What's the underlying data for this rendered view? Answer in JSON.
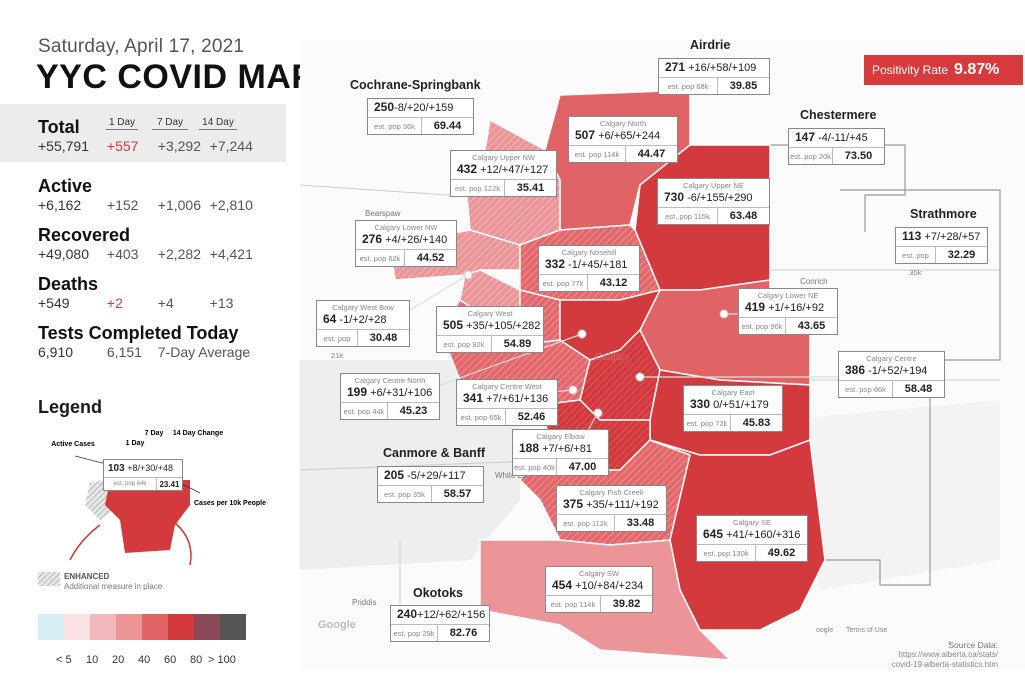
{
  "header": {
    "date": "Saturday, April 17, 2021",
    "title": "YYC COVID MAP"
  },
  "columns": {
    "d1": "1 Day",
    "d7": "7 Day",
    "d14": "14 Day"
  },
  "stats": {
    "total": {
      "label": "Total",
      "value": "+55,791",
      "d1": "+557",
      "d7": "+3,292",
      "d14": "+7,244"
    },
    "active": {
      "label": "Active",
      "value": "+6,162",
      "d1": "+152",
      "d7": "+1,006",
      "d14": "+2,810"
    },
    "recovered": {
      "label": "Recovered",
      "value": "+49,080",
      "d1": "+403",
      "d7": "+2,282",
      "d14": "+4,421"
    },
    "deaths": {
      "label": "Deaths",
      "value": "+549",
      "d1": "+2",
      "d7": "+4",
      "d14": "+13"
    },
    "tests": {
      "label": "Tests Completed Today",
      "value": "6,910",
      "avg": "6,151",
      "avg_label": "7-Day Average"
    }
  },
  "legend": {
    "title": "Legend",
    "active_cases": "Active Cases",
    "one_day": "1 Day",
    "seven_day": "7 Day",
    "fourteen_day": "14 Day Change",
    "cases_per": "Cases per 10k People",
    "sample_active": "103",
    "sample_changes": "+8/+30/+48",
    "sample_pop": "est. pop 44k",
    "sample_rate": "23.41",
    "enhanced": "ENHANCED",
    "enhanced_desc": "Additional measure in place",
    "scale_labels": [
      "< 5",
      "10",
      "20",
      "40",
      "60",
      "80",
      "> 100"
    ],
    "scale_colors": [
      "#d6edf5",
      "#fbe3e5",
      "#f3b9bc",
      "#ec9598",
      "#e06366",
      "#d23a3e",
      "#8a4a58",
      "#555555"
    ]
  },
  "positivity": {
    "label": "Positivity Rate",
    "value": "9.87%"
  },
  "source": {
    "title": "Source Data:",
    "line1": "https://www.alberta.ca/stats/",
    "line2": "covid-19-alberta-statistics.htm"
  },
  "basemap": {
    "calgary": "Calgary",
    "white_elk": "White Elk",
    "priddis": "Priddis",
    "conrich": "Conrich",
    "bearspaw": "Bearspaw",
    "google": "Google",
    "terms": "Terms of Use",
    "keyboard": "oogle"
  },
  "regions": {
    "airdrie": {
      "title": "Airdrie",
      "active": "271",
      "changes": "+16/+58/+109",
      "pop": "est. pop 68k",
      "rate": "39.85"
    },
    "cochrane": {
      "title": "Cochrane-Springbank",
      "active": "250",
      "changes": "-8/+20/+159",
      "pop": "est. pop 36k",
      "rate": "69.44"
    },
    "chestermere": {
      "title": "Chestermere",
      "active": "147",
      "changes": "-4/-11/+45",
      "pop": "est. pop 20k",
      "rate": "73.50"
    },
    "strathmore": {
      "title": "Strathmore",
      "active": "113",
      "changes": "+7/+28/+57",
      "pop": "est. pop 35k",
      "rate": "32.29"
    },
    "north": {
      "name": "Calgary North",
      "active": "507",
      "changes": "+6/+65/+244",
      "pop": "est. pop 114k",
      "rate": "44.47"
    },
    "upper_nw": {
      "name": "Calgary Upper NW",
      "active": "432",
      "changes": "+12/+47/+127",
      "pop": "est. pop 122k",
      "rate": "35.41"
    },
    "upper_ne": {
      "name": "Calgary Upper NE",
      "active": "730",
      "changes": "-6/+155/+290",
      "pop": "est. pop 115k",
      "rate": "63.48"
    },
    "lower_nw": {
      "name": "Calgary Lower NW",
      "active": "276",
      "changes": "+4/+26/+140",
      "pop": "est. pop 62k",
      "rate": "44.52"
    },
    "nosehill": {
      "name": "Calgary Nosehill",
      "active": "332",
      "changes": "-1/+45/+181",
      "pop": "est. pop 77k",
      "rate": "43.12"
    },
    "west_bow": {
      "name": "Calgary West Bow",
      "active": "64",
      "changes": "-1/+2/+28",
      "pop": "est. pop 21k",
      "rate": "30.48"
    },
    "west": {
      "name": "Calgary West",
      "active": "505",
      "changes": "+35/+105/+282",
      "pop": "est. pop 92k",
      "rate": "54.89"
    },
    "lower_ne": {
      "name": "Calgary Lower NE",
      "active": "419",
      "changes": "+1/+16/+92",
      "pop": "est. pop 96k",
      "rate": "43.65"
    },
    "centre_north": {
      "name": "Calgary Centre North",
      "active": "199",
      "changes": "+6/+31/+106",
      "pop": "est. pop 44k",
      "rate": "45.23"
    },
    "centre_west": {
      "name": "Calgary Centre West",
      "active": "341",
      "changes": "+7/+61/+136",
      "pop": "est. pop 65k",
      "rate": "52.46"
    },
    "centre": {
      "name": "Calgary Centre",
      "active": "386",
      "changes": "-1/+52/+194",
      "pop": "est. pop 66k",
      "rate": "58.48"
    },
    "east": {
      "name": "Calgary East",
      "active": "330",
      "changes": "0/+51/+179",
      "pop": "est. pop 72k",
      "rate": "45.83"
    },
    "elbow": {
      "name": "Calgary Elbow",
      "active": "188",
      "changes": "+7/+6/+81",
      "pop": "est. pop 40k",
      "rate": "47.00"
    },
    "canmore": {
      "title": "Canmore & Banff",
      "active": "205",
      "changes": "-5/+29/+117",
      "pop": "est. pop 35k",
      "rate": "58.57"
    },
    "fish_creek": {
      "name": "Calgary Fish Creek",
      "active": "375",
      "changes": "+35/+111/+192",
      "pop": "est. pop 112k",
      "rate": "33.48"
    },
    "se": {
      "name": "Calgary SE",
      "active": "645",
      "changes": "+41/+160/+316",
      "pop": "est. pop 130k",
      "rate": "49.62"
    },
    "sw": {
      "name": "Calgary SW",
      "active": "454",
      "changes": "+10/+84/+234",
      "pop": "est. pop 114k",
      "rate": "39.82"
    },
    "okotoks": {
      "title": "Okotoks",
      "active": "240",
      "changes": "+12/+62/+156",
      "pop": "est. pop 29k",
      "rate": "82.76"
    }
  }
}
